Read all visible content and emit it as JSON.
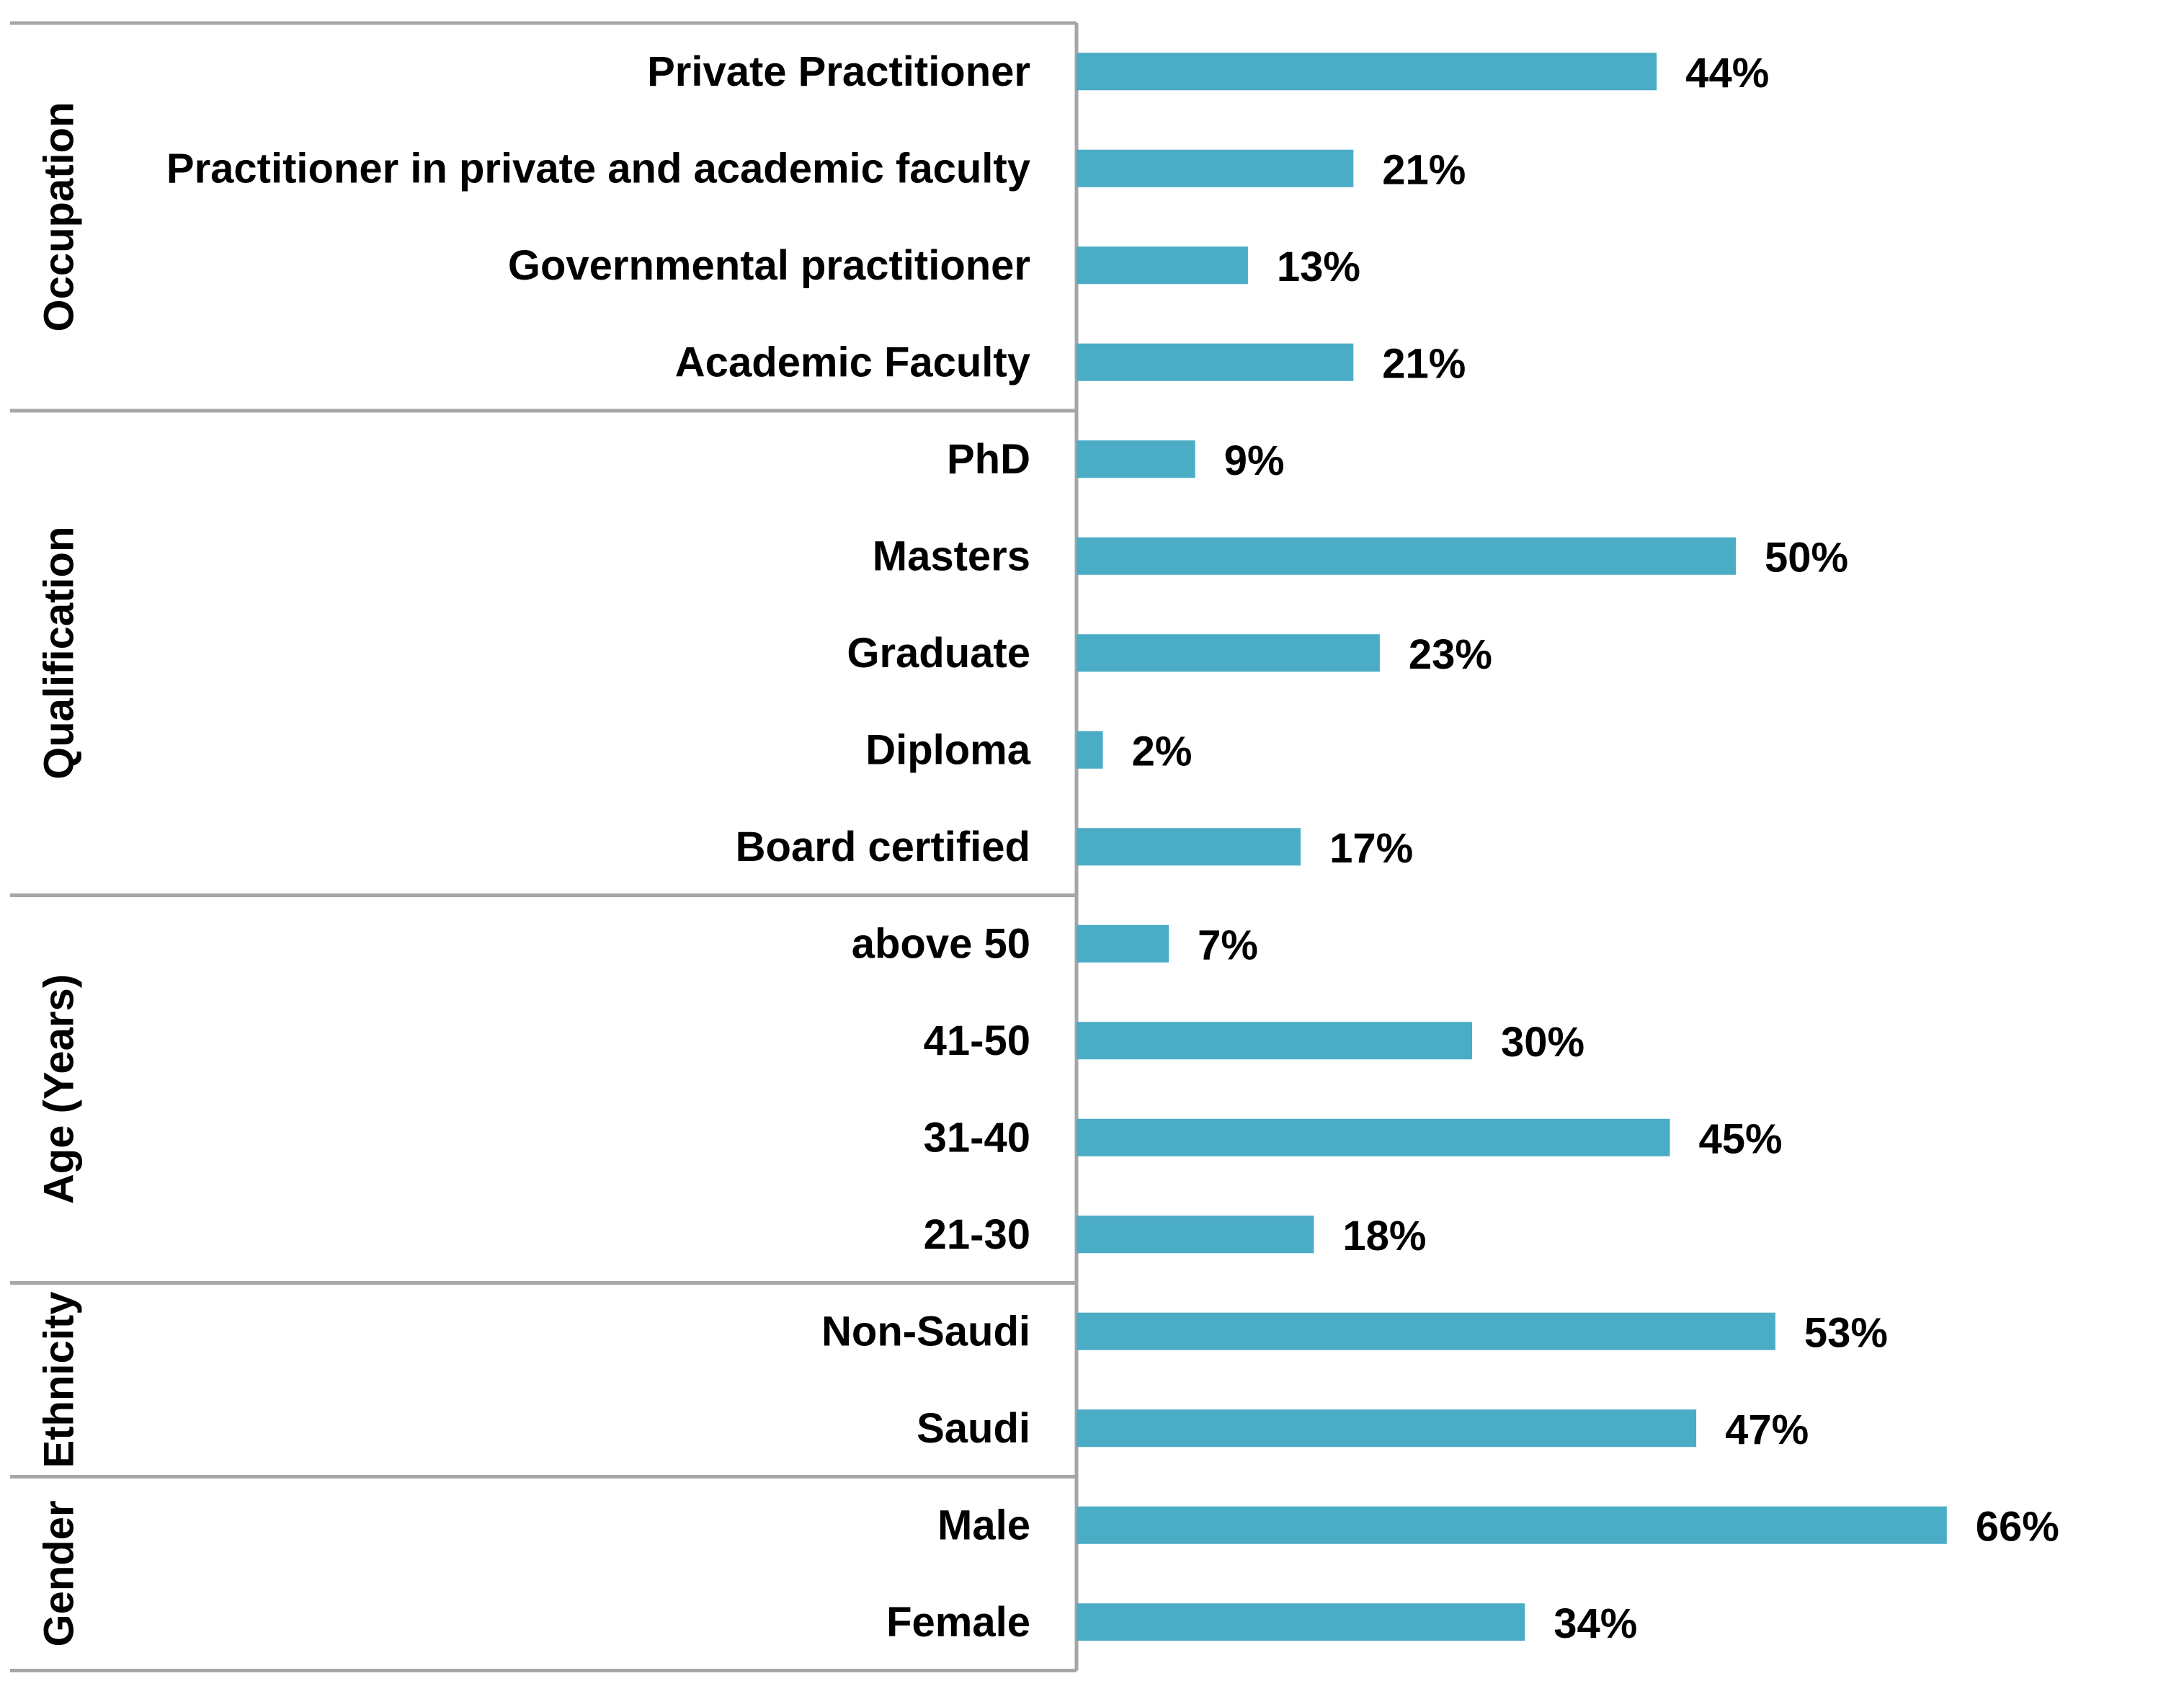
{
  "chart_data": {
    "type": "bar",
    "orientation": "horizontal",
    "value_suffix": "%",
    "xlim": [
      0,
      66
    ],
    "bar_color": "#4bacc6",
    "groups": [
      {
        "name": "Occupation",
        "categories": [
          "Private Practitioner",
          "Practitioner in private and academic faculty",
          "Governmental practitioner",
          "Academic Faculty"
        ],
        "values": [
          44,
          21,
          13,
          21
        ],
        "labels": [
          "44%",
          "21%",
          "13%",
          "21%"
        ]
      },
      {
        "name": "Qualification",
        "categories": [
          "PhD",
          "Masters",
          "Graduate",
          "Diploma",
          "Board certified"
        ],
        "values": [
          9,
          50,
          23,
          2,
          17
        ],
        "labels": [
          "9%",
          "50%",
          "23%",
          "2%",
          "17%"
        ]
      },
      {
        "name": "Age (Years)",
        "categories": [
          "above 50",
          "41-50",
          "31-40",
          "21-30"
        ],
        "values": [
          7,
          30,
          45,
          18
        ],
        "labels": [
          "7%",
          "30%",
          "45%",
          "18%"
        ]
      },
      {
        "name": "Ethnicity",
        "categories": [
          "Non-Saudi",
          "Saudi"
        ],
        "values": [
          53,
          47
        ],
        "labels": [
          "53%",
          "47%"
        ]
      },
      {
        "name": "Gender",
        "categories": [
          "Male",
          "Female"
        ],
        "values": [
          66,
          34
        ],
        "labels": [
          "66%",
          "34%"
        ]
      }
    ]
  }
}
